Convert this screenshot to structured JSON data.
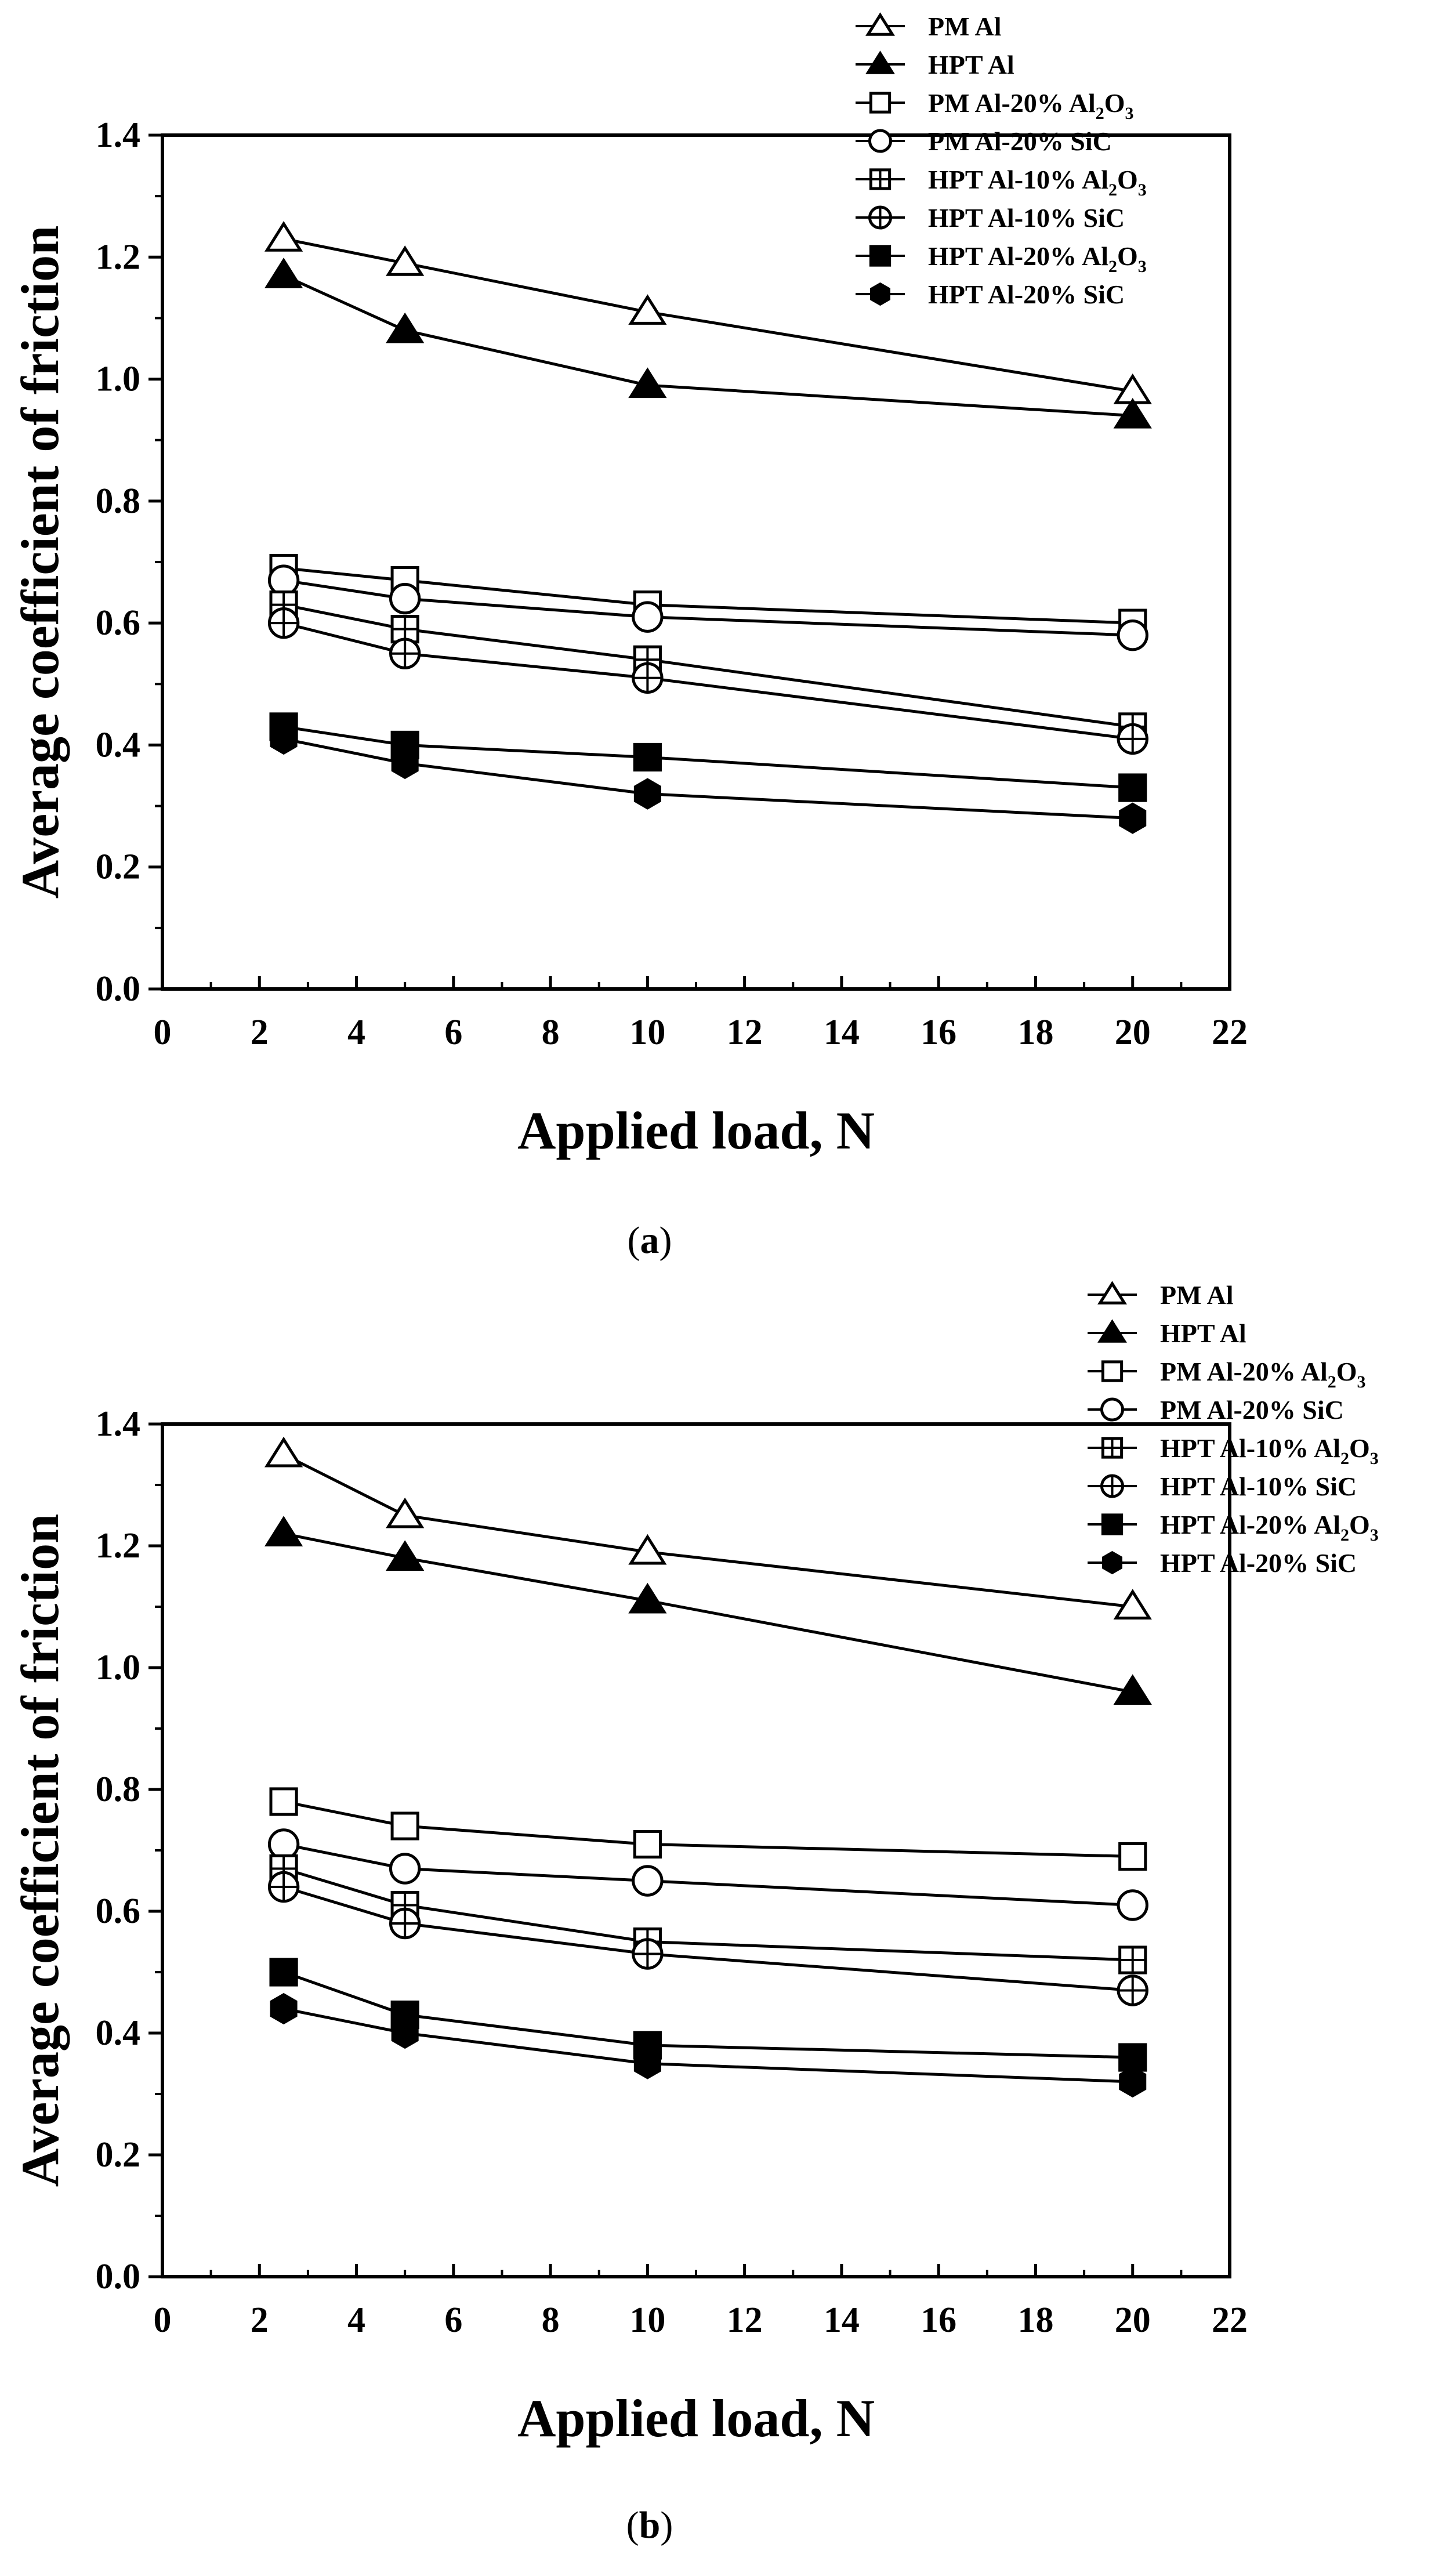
{
  "chart_data": [
    {
      "type": "line",
      "panel": "(a)",
      "caption_open": "(",
      "caption_letter": "a",
      "caption_close": ")",
      "xlabel": "Applied load, N",
      "ylabel": "Average coefficient of friction",
      "xlim": [
        0,
        22
      ],
      "ylim": [
        0,
        1.4
      ],
      "x_ticks": [
        0,
        2,
        4,
        6,
        8,
        10,
        12,
        14,
        16,
        18,
        20,
        22
      ],
      "y_ticks": [
        0.0,
        0.2,
        0.4,
        0.6,
        0.8,
        1.0,
        1.2,
        1.4
      ],
      "legend_position": "top-right, outside plot",
      "x": [
        2.5,
        5,
        10,
        20
      ],
      "series": [
        {
          "name": "PM Al",
          "marker": "triangle-open",
          "values": [
            1.23,
            1.19,
            1.11,
            0.98
          ]
        },
        {
          "name": "HPT Al",
          "marker": "triangle-filled",
          "values": [
            1.17,
            1.08,
            0.99,
            0.94
          ]
        },
        {
          "name": "PM Al-20% Al2O3",
          "label_main": "PM Al-20% Al",
          "label_sub": "2",
          "label_end": "O",
          "label_sub2": "3",
          "marker": "square-open",
          "values": [
            0.69,
            0.67,
            0.63,
            0.6
          ]
        },
        {
          "name": "PM Al-20% SiC",
          "marker": "circle-open",
          "values": [
            0.67,
            0.64,
            0.61,
            0.58
          ]
        },
        {
          "name": "HPT Al-10% Al2O3",
          "label_main": "HPT Al-10% Al",
          "label_sub": "2",
          "label_end": "O",
          "label_sub2": "3",
          "marker": "square-plus",
          "values": [
            0.63,
            0.59,
            0.54,
            0.43
          ]
        },
        {
          "name": "HPT Al-10% SiC",
          "marker": "circle-plus",
          "values": [
            0.6,
            0.55,
            0.51,
            0.41
          ]
        },
        {
          "name": "HPT Al-20% Al2O3",
          "label_main": "HPT Al-20% Al",
          "label_sub": "2",
          "label_end": "O",
          "label_sub2": "3",
          "marker": "square-filled",
          "values": [
            0.43,
            0.4,
            0.38,
            0.33
          ]
        },
        {
          "name": "HPT Al-20% SiC",
          "marker": "hexagon-filled",
          "values": [
            0.41,
            0.37,
            0.32,
            0.28
          ]
        }
      ]
    },
    {
      "type": "line",
      "panel": "(b)",
      "caption_open": "(",
      "caption_letter": "b",
      "caption_close": ")",
      "xlabel": "Applied load, N",
      "ylabel": "Average coefficient of friction",
      "xlim": [
        0,
        22
      ],
      "ylim": [
        0,
        1.4
      ],
      "x_ticks": [
        0,
        2,
        4,
        6,
        8,
        10,
        12,
        14,
        16,
        18,
        20,
        22
      ],
      "y_ticks": [
        0.0,
        0.2,
        0.4,
        0.6,
        0.8,
        1.0,
        1.2,
        1.4
      ],
      "legend_position": "top-right, overlapping plot",
      "x": [
        2.5,
        5,
        10,
        20
      ],
      "series": [
        {
          "name": "PM Al",
          "marker": "triangle-open",
          "values": [
            1.35,
            1.25,
            1.19,
            1.1
          ]
        },
        {
          "name": "HPT Al",
          "marker": "triangle-filled",
          "values": [
            1.22,
            1.18,
            1.11,
            0.96
          ]
        },
        {
          "name": "PM Al-20% Al2O3",
          "label_main": "PM Al-20% Al",
          "label_sub": "2",
          "label_end": "O",
          "label_sub2": "3",
          "marker": "square-open",
          "values": [
            0.78,
            0.74,
            0.71,
            0.69
          ]
        },
        {
          "name": "PM Al-20% SiC",
          "marker": "circle-open",
          "values": [
            0.71,
            0.67,
            0.65,
            0.61
          ]
        },
        {
          "name": "HPT Al-10% Al2O3",
          "label_main": "HPT Al-10% Al",
          "label_sub": "2",
          "label_end": "O",
          "label_sub2": "3",
          "marker": "square-plus",
          "values": [
            0.67,
            0.61,
            0.55,
            0.52
          ]
        },
        {
          "name": "HPT Al-10% SiC",
          "marker": "circle-plus",
          "values": [
            0.64,
            0.58,
            0.53,
            0.47
          ]
        },
        {
          "name": "HPT Al-20% Al2O3",
          "label_main": "HPT Al-20% Al",
          "label_sub": "2",
          "label_end": "O",
          "label_sub2": "3",
          "marker": "square-filled",
          "values": [
            0.5,
            0.43,
            0.38,
            0.36
          ]
        },
        {
          "name": "HPT Al-20% SiC",
          "marker": "hexagon-filled",
          "values": [
            0.44,
            0.4,
            0.35,
            0.32
          ]
        }
      ]
    }
  ]
}
